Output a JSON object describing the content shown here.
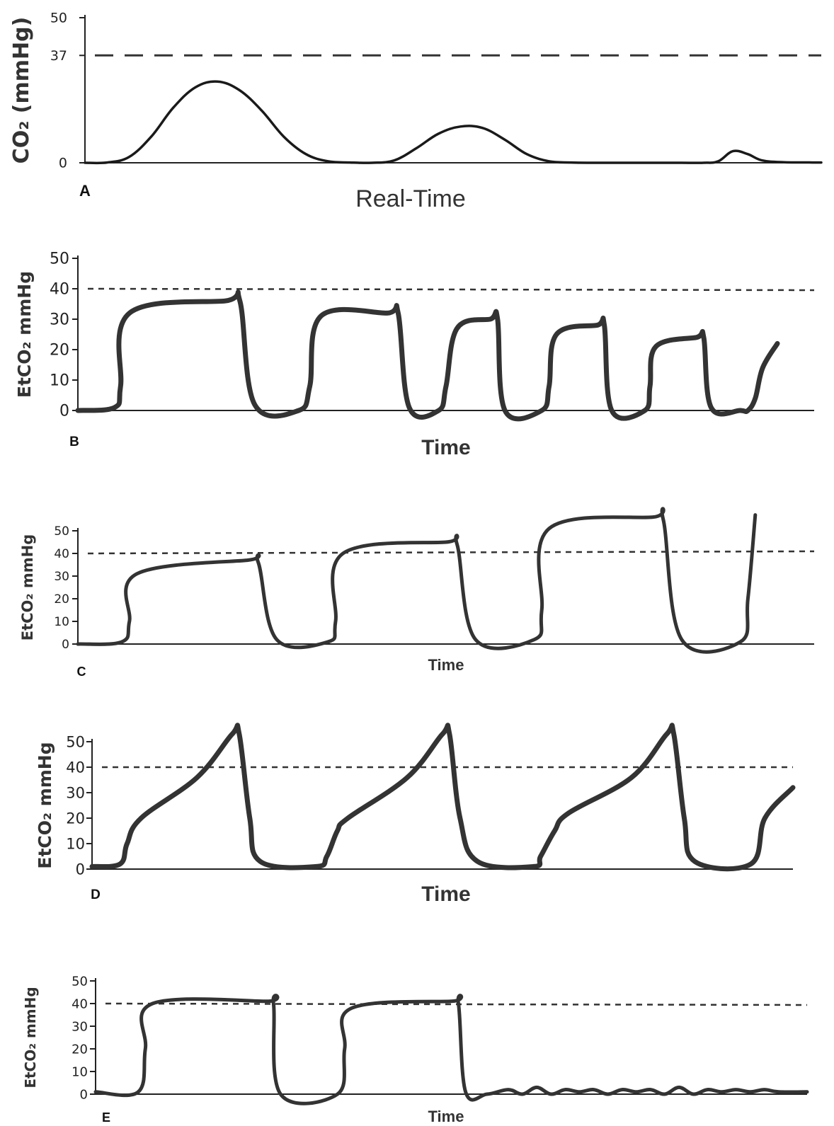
{
  "chart_data": [
    {
      "panel": "A",
      "type": "line",
      "ylabel": "CO₂ (mmHg)",
      "xlabel": "Real-Time",
      "yticks": [
        "0",
        "37",
        "50"
      ],
      "ylim": [
        0,
        50
      ],
      "xlim": [
        0,
        100
      ],
      "reference_line": 37,
      "grid": false,
      "series": [
        {
          "x": [
            0,
            3,
            6,
            9,
            12,
            15,
            18,
            21,
            24,
            27,
            30,
            33,
            36,
            39,
            42,
            45,
            48,
            51,
            54,
            57,
            60,
            63,
            66,
            69,
            72,
            75,
            78,
            81,
            84,
            86,
            88,
            90,
            92,
            95,
            100
          ],
          "values": [
            0,
            0.1,
            2,
            9,
            19,
            26,
            28,
            25,
            18,
            9,
            3,
            0.5,
            0.1,
            0,
            0.8,
            5,
            10,
            12.5,
            12,
            8,
            3,
            0.5,
            0.1,
            0,
            0,
            0,
            0,
            0,
            0,
            0.5,
            4,
            3,
            0.8,
            0.2,
            0.1
          ]
        }
      ]
    },
    {
      "panel": "B",
      "type": "line",
      "ylabel": "EtCO₂ mmHg",
      "xlabel": "Time",
      "yticks": [
        "0",
        "10",
        "20",
        "30",
        "40",
        "50"
      ],
      "ylim": [
        0,
        50
      ],
      "xlim": [
        0,
        100
      ],
      "reference_line": 40,
      "grid": false,
      "series": [
        {
          "x": [
            0,
            5,
            5.8,
            7,
            20,
            22,
            24,
            30,
            31.5,
            33,
            42,
            43.5,
            45,
            49,
            50,
            51.5,
            56,
            57,
            58,
            63,
            64,
            65,
            70.5,
            71.5,
            72.5,
            77,
            77.7,
            78.5,
            84,
            85,
            86,
            90,
            91,
            92,
            93,
            95
          ],
          "values": [
            0,
            1,
            8,
            32,
            36,
            36,
            2,
            0,
            8,
            31,
            32,
            32,
            1,
            0,
            8,
            27,
            30,
            30,
            0,
            0,
            8,
            25,
            28,
            28,
            0,
            0,
            8,
            21,
            24,
            24,
            1,
            0,
            0,
            4,
            14,
            22
          ]
        }
      ]
    },
    {
      "panel": "C",
      "type": "line",
      "ylabel": "EtCO₂ mmHg",
      "xlabel": "Time",
      "yticks": [
        "0",
        "10",
        "20",
        "30",
        "40",
        "50"
      ],
      "ylim": [
        0,
        50
      ],
      "xlim": [
        0,
        100
      ],
      "reference_line": 40,
      "grid": false,
      "series": [
        {
          "x": [
            0,
            6,
            7,
            8,
            23,
            24.5,
            27,
            34,
            35,
            36,
            50,
            51.5,
            54,
            62,
            63,
            64,
            78,
            79.5,
            82,
            90,
            91,
            92
          ],
          "values": [
            0,
            1,
            10,
            31,
            37,
            36,
            2,
            1,
            10,
            40,
            45,
            44,
            2,
            2,
            15,
            51,
            56,
            55,
            2,
            1,
            20,
            57
          ]
        }
      ]
    },
    {
      "panel": "D",
      "type": "line",
      "ylabel": "EtCO₂ mmHg",
      "xlabel": "Time",
      "yticks": [
        "0",
        "10",
        "20",
        "30",
        "40",
        "50"
      ],
      "ylim": [
        0,
        50
      ],
      "xlim": [
        0,
        100
      ],
      "reference_line": 40,
      "grid": false,
      "series": [
        {
          "x": [
            0,
            4,
            5,
            7,
            15,
            20,
            21,
            22.5,
            24,
            32,
            33.5,
            35,
            36.5,
            45,
            50,
            51,
            52.5,
            55,
            63,
            64,
            66,
            68,
            77,
            82,
            83,
            84.5,
            86,
            94,
            96,
            100
          ],
          "values": [
            1,
            2,
            10,
            20,
            36,
            53,
            53,
            20,
            3,
            1,
            5,
            15,
            20,
            36,
            53,
            53,
            20,
            3,
            1,
            5,
            15,
            22,
            36,
            53,
            53,
            20,
            3,
            2,
            20,
            32
          ]
        }
      ]
    },
    {
      "panel": "E",
      "type": "line",
      "ylabel": "EtCO₂ mmHg",
      "xlabel": "Time",
      "yticks": [
        "0",
        "10",
        "20",
        "30",
        "40",
        "50"
      ],
      "ylim": [
        0,
        50
      ],
      "xlim": [
        0,
        100
      ],
      "reference_line": 40,
      "grid": false,
      "series": [
        {
          "x": [
            0,
            6,
            7,
            8,
            24,
            25,
            26,
            34,
            35,
            36,
            50,
            51,
            52,
            55,
            58,
            60,
            62,
            64,
            66,
            68,
            70,
            72,
            74,
            76,
            78,
            80,
            82,
            84,
            86,
            88,
            90,
            92,
            94,
            96,
            100
          ],
          "values": [
            1,
            1,
            20,
            40,
            41,
            40,
            0,
            0,
            20,
            38,
            41,
            40,
            1,
            0,
            2,
            0,
            3,
            0,
            2,
            1,
            2,
            0,
            2,
            1,
            2,
            0,
            3,
            0,
            2,
            1,
            2,
            1,
            2,
            1,
            1
          ]
        }
      ]
    }
  ]
}
